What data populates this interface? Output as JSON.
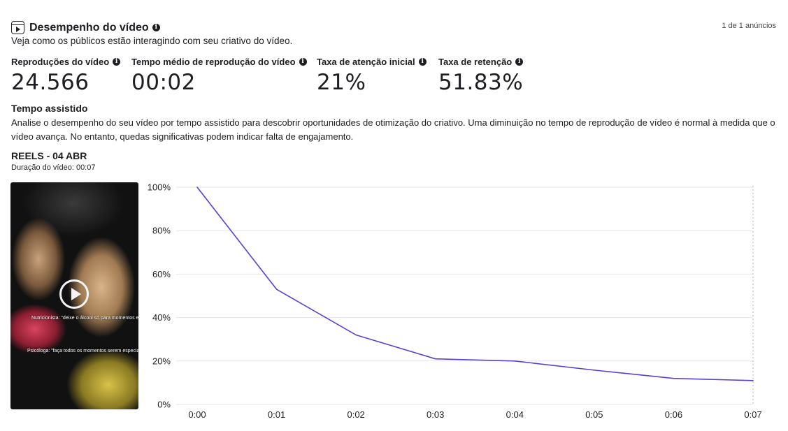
{
  "header": {
    "title": "Desempenho do vídeo",
    "subtitle": "Veja como os públicos estão interagindo com seu criativo do vídeo.",
    "ad_count": "1 de 1 anúncios"
  },
  "metrics": [
    {
      "label": "Reproduções do vídeo",
      "value": "24.566"
    },
    {
      "label": "Tempo médio de reprodução do vídeo",
      "value": "00:02"
    },
    {
      "label": "Taxa de atenção inicial",
      "value": "21%"
    },
    {
      "label": "Taxa de retenção",
      "value": "51.83%"
    }
  ],
  "watch_time": {
    "title": "Tempo assistido",
    "description": "Analise o desempenho do seu vídeo por tempo assistido para descobrir oportunidades de otimização do criativo. Uma diminuição no tempo de reprodução de vídeo é normal à medida que o vídeo avança. No entanto, quedas significativas podem indicar falta de engajamento."
  },
  "video": {
    "title": "REELS - 04 ABR",
    "duration": "Duração do vídeo: 00:07",
    "overlay_text_1": "Nutricionista: \"deixe o álcool só para momentos especiais\"",
    "overlay_text_2": "Psicóloga: \"faça todos os momentos serem especiais\""
  },
  "icons": {
    "title_icon": "reels-icon",
    "info_icon": "info-icon",
    "play_icon": "play-icon"
  },
  "colors": {
    "line": "#5b3fd1",
    "grid": "#e4e6eb",
    "text": "#1c1e21"
  },
  "chart_data": {
    "type": "line",
    "x": [
      "0:00",
      "0:01",
      "0:02",
      "0:03",
      "0:04",
      "0:05",
      "0:06",
      "0:07"
    ],
    "series": [
      {
        "values": [
          100,
          53,
          32,
          21,
          20,
          15.8,
          12,
          11
        ]
      }
    ],
    "y_ticks": [
      "0%",
      "20%",
      "40%",
      "60%",
      "80%",
      "100%"
    ],
    "ylim": [
      0,
      100
    ],
    "grid": true,
    "title": "",
    "xlabel": "",
    "ylabel": ""
  }
}
